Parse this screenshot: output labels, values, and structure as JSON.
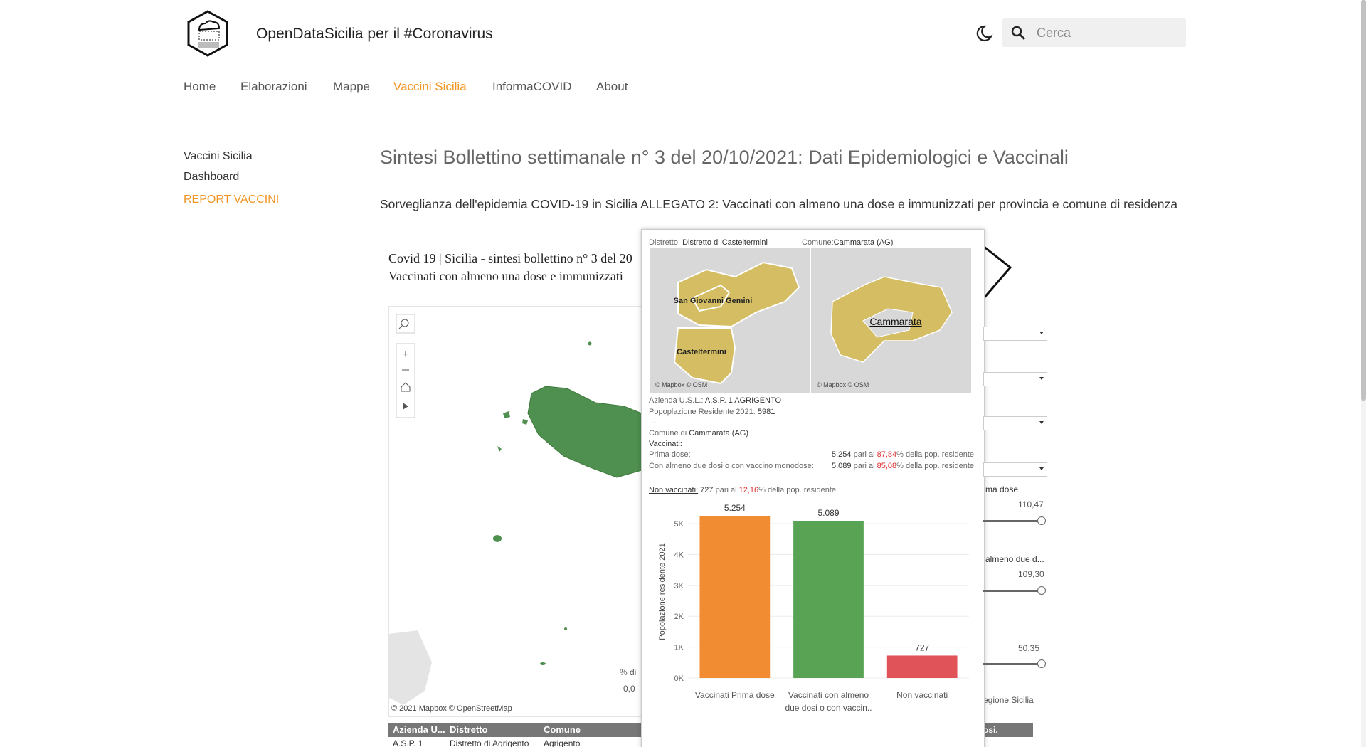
{
  "header": {
    "site_title": "OpenDataSicilia per il #Coronavirus",
    "search_placeholder": "Cerca"
  },
  "nav": [
    {
      "label": "Home",
      "active": false
    },
    {
      "label": "Elaborazioni",
      "active": false
    },
    {
      "label": "Mappe",
      "active": false
    },
    {
      "label": "Vaccini Sicilia",
      "active": true
    },
    {
      "label": "InformaCOVID",
      "active": false
    },
    {
      "label": "About",
      "active": false
    }
  ],
  "sidebar": [
    {
      "label": "Vaccini Sicilia",
      "active": false
    },
    {
      "label": "Dashboard",
      "active": false
    },
    {
      "label": "REPORT VACCINI",
      "active": true
    }
  ],
  "article": {
    "title": "Sintesi Bollettino settimanale n° 3 del 20/10/2021: Dati Epidemiologici e Vaccinali",
    "subtitle": "Sorveglianza dell'epidemia COVID-19 in Sicilia ALLEGATO 2: Vaccinati con almeno una dose e immunizzati per provincia e comune di residenza"
  },
  "dashboard": {
    "heading_lines": [
      "Covid 19 | Sicilia - sintesi bollettino n° 3 del 20",
      "Vaccinati con almeno una dose e immunizzati"
    ],
    "map_credit": "© 2021 Mapbox  © OpenStreetMap",
    "legend_label": "% di",
    "legend_value": "0,0",
    "table_headers": [
      "Azienda U...",
      "Distretto",
      "Comune"
    ],
    "table_row": [
      "A.S.P. 1",
      "Distretto di Agrigento",
      "Agrigento"
    ],
    "right_table_header": "osi.",
    "filters": [
      {
        "label": "ma dose",
        "value": "110,47"
      },
      {
        "label": "almeno due d...",
        "value": "109,30"
      },
      {
        "value": "50,35"
      }
    ],
    "region_label": "egione Sicilia"
  },
  "tooltip": {
    "distretto_label": "Distretto:",
    "distretto": "Distretto di Casteltermini",
    "comune_label": "Comune:",
    "comune": "Cammarata (AG)",
    "map_labels": [
      "San Giovanni Gemini",
      "Casteltermini",
      "Cammarata"
    ],
    "map_credit": "© Mapbox © OSM",
    "azienda": {
      "label": "Azienda U.S.L.:",
      "value": "A.S.P. 1 AGRIGENTO"
    },
    "popolazione": {
      "label": "Popoplazione Residente 2021:",
      "value": "5981"
    },
    "ellipsis": "...",
    "comune_line": {
      "label": "Comune di",
      "value": "Cammarata (AG)"
    },
    "vaccinati_heading": "Vaccinati:",
    "rows": [
      {
        "label": "Prima dose:",
        "count": "5.254",
        "pari": "pari al",
        "pct": "87,84",
        "unit": "%",
        "tail": "della pop. residente"
      },
      {
        "label": "Con almeno due dosi o con vaccino monodose:",
        "count": "5.089",
        "pari": "pari al",
        "pct": "85,08",
        "unit": "%",
        "tail": "della pop. residente"
      }
    ],
    "non_vaccinati": {
      "label": "Non vaccinati:",
      "count": "727",
      "pari": "pari al",
      "pct": "12,16",
      "unit": "%",
      "tail": "della pop. residente"
    }
  },
  "chart_data": {
    "type": "bar",
    "y_label": "Popolazione residente 2021",
    "categories": [
      "Vaccinati Prima dose",
      "Vaccinati con almeno due dosi o con vaccin..",
      "Non vaccinati"
    ],
    "values": [
      5254,
      5089,
      727
    ],
    "value_labels": [
      "5.254",
      "5.089",
      "727"
    ],
    "colors": [
      "#f28c33",
      "#59a454",
      "#e05358"
    ],
    "ylim": [
      0,
      5600
    ],
    "yticks": [
      {
        "value": 0,
        "label": "0K"
      },
      {
        "value": 1000,
        "label": "1K"
      },
      {
        "value": 2000,
        "label": "2K"
      },
      {
        "value": 3000,
        "label": "3K"
      },
      {
        "value": 4000,
        "label": "4K"
      },
      {
        "value": 5000,
        "label": "5K"
      }
    ],
    "grid": true
  }
}
